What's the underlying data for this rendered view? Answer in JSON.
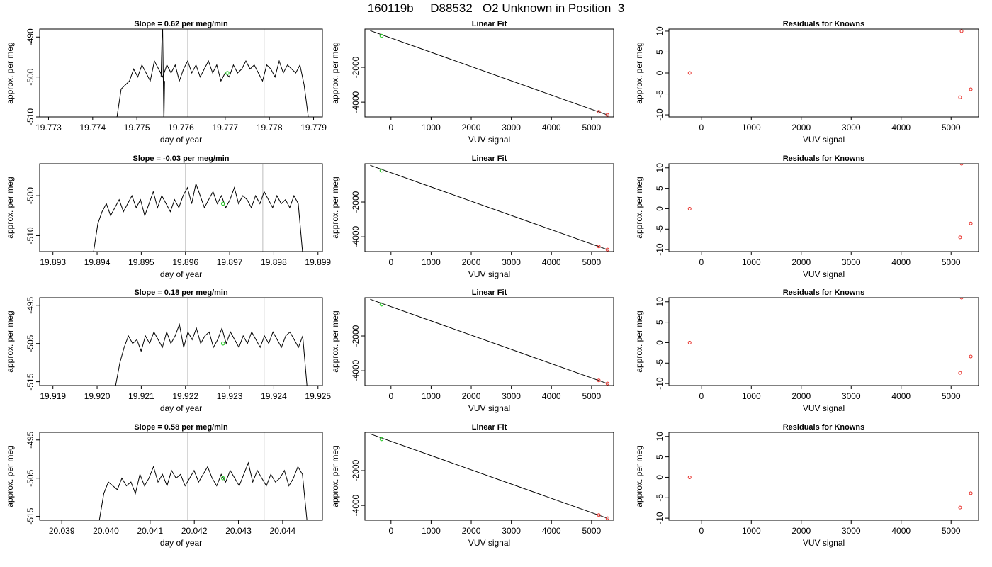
{
  "title": "160119b     D88532   O2 Unknown in Position  3",
  "chart_data": [
    {
      "type": "line",
      "title": "Slope =  0.62  per meg/min",
      "xlabel": "day of year",
      "ylabel": "approx. per meg",
      "xlim": [
        19.7728,
        19.7792
      ],
      "ylim": [
        -510,
        -488
      ],
      "xticks": [
        19.773,
        19.774,
        19.775,
        19.776,
        19.777,
        19.778,
        19.779
      ],
      "xtick_labels": [
        "19.773",
        "19.774",
        "19.775",
        "19.776",
        "19.777",
        "19.778",
        "19.779"
      ],
      "yticks": [
        -510,
        -500,
        -490
      ],
      "ytick_labels": [
        "-510",
        "-500",
        "-490"
      ],
      "vlines": [
        19.77615,
        19.77788
      ],
      "x_start": 19.77455,
      "x_end": 19.77888,
      "y": [
        -510,
        -503,
        -502,
        -501,
        -498,
        -500,
        -497,
        -499,
        -501,
        -496,
        -498,
        -500,
        -497,
        -499,
        -497,
        -501,
        -498,
        -496,
        -499,
        -497,
        -500,
        -498,
        -496,
        -499,
        -497,
        -501,
        -499,
        -500,
        -497,
        -499,
        -498,
        -496,
        -498,
        -497,
        -499,
        -501,
        -497,
        -498,
        -500,
        -496,
        -499,
        -497,
        -498,
        -499,
        -497,
        -502,
        -510
      ],
      "spike": {
        "x": 19.77558,
        "ylow": -512,
        "yhigh": -485
      },
      "marker": {
        "x": 19.77705,
        "y": -499
      },
      "grid": false
    },
    {
      "type": "scatter",
      "title": "Linear Fit",
      "xlabel": "VUV signal",
      "ylabel": "approx. per meg",
      "xlim": [
        -650,
        5550
      ],
      "ylim": [
        -4850,
        200
      ],
      "xticks": [
        0,
        1000,
        2000,
        3000,
        4000,
        5000
      ],
      "xtick_labels": [
        "0",
        "1000",
        "2000",
        "3000",
        "4000",
        "5000"
      ],
      "yticks": [
        -4000,
        -2000
      ],
      "ytick_labels": [
        "-4000",
        "-2000"
      ],
      "line": {
        "x": [
          -520,
          5400
        ],
        "y": [
          110,
          -4740
        ]
      },
      "known_points": [
        {
          "x": 5180,
          "y": -4555
        },
        {
          "x": 5395,
          "y": -4735
        }
      ],
      "unknown_point": {
        "x": -235,
        "y": -190
      },
      "grid": false
    },
    {
      "type": "scatter",
      "title": "Residuals for Knowns",
      "xlabel": "VUV signal",
      "ylabel": "approx. per meg",
      "xlim": [
        -650,
        5550
      ],
      "ylim": [
        -10.5,
        10.5
      ],
      "xticks": [
        0,
        1000,
        2000,
        3000,
        4000,
        5000
      ],
      "xtick_labels": [
        "0",
        "1000",
        "2000",
        "3000",
        "4000",
        "5000"
      ],
      "yticks": [
        -10,
        -5,
        0,
        5,
        10
      ],
      "ytick_labels": [
        "-10",
        "-5",
        "0",
        "5",
        "10"
      ],
      "points": [
        {
          "x": -235,
          "y": 0
        },
        {
          "x": 5210,
          "y": 10
        },
        {
          "x": 5180,
          "y": -5.8
        },
        {
          "x": 5395,
          "y": -3.9
        }
      ],
      "grid": false
    },
    {
      "type": "line",
      "title": "Slope =  -0.03  per meg/min",
      "xlabel": "day of year",
      "ylabel": "approx. per meg",
      "xlim": [
        19.8927,
        19.8991
      ],
      "ylim": [
        -514,
        -492
      ],
      "xticks": [
        19.893,
        19.894,
        19.895,
        19.896,
        19.897,
        19.898,
        19.899
      ],
      "xtick_labels": [
        "19.893",
        "19.894",
        "19.895",
        "19.896",
        "19.897",
        "19.898",
        "19.899"
      ],
      "yticks": [
        -510,
        -500
      ],
      "ytick_labels": [
        "-510",
        "-500"
      ],
      "vlines": [
        19.896,
        19.89775
      ],
      "x_start": 19.89392,
      "x_end": 19.89865,
      "y": [
        -514,
        -507,
        -504,
        -502,
        -505,
        -503,
        -501,
        -504,
        -502,
        -500,
        -503,
        -501,
        -505,
        -502,
        -499,
        -503,
        -500,
        -502,
        -504,
        -501,
        -503,
        -500,
        -498,
        -502,
        -497,
        -500,
        -503,
        -501,
        -499,
        -502,
        -500,
        -503,
        -501,
        -498,
        -502,
        -500,
        -501,
        -503,
        -500,
        -502,
        -499,
        -501,
        -503,
        -500,
        -502,
        -501,
        -503,
        -500,
        -502,
        -514
      ],
      "marker": {
        "x": 19.89685,
        "y": -502
      },
      "grid": false
    },
    {
      "type": "scatter",
      "title": "Linear Fit",
      "xlabel": "VUV signal",
      "ylabel": "approx. per meg",
      "xlim": [
        -650,
        5550
      ],
      "ylim": [
        -4850,
        200
      ],
      "xticks": [
        0,
        1000,
        2000,
        3000,
        4000,
        5000
      ],
      "xtick_labels": [
        "0",
        "1000",
        "2000",
        "3000",
        "4000",
        "5000"
      ],
      "yticks": [
        -4000,
        -2000
      ],
      "ytick_labels": [
        "-4000",
        "-2000"
      ],
      "line": {
        "x": [
          -520,
          5400
        ],
        "y": [
          110,
          -4740
        ]
      },
      "known_points": [
        {
          "x": 5180,
          "y": -4555
        },
        {
          "x": 5395,
          "y": -4735
        }
      ],
      "unknown_point": {
        "x": -235,
        "y": -190
      },
      "grid": false
    },
    {
      "type": "scatter",
      "title": "Residuals for Knowns",
      "xlabel": "VUV signal",
      "ylabel": "approx. per meg",
      "xlim": [
        -650,
        5550
      ],
      "ylim": [
        -10.5,
        11
      ],
      "xticks": [
        0,
        1000,
        2000,
        3000,
        4000,
        5000
      ],
      "xtick_labels": [
        "0",
        "1000",
        "2000",
        "3000",
        "4000",
        "5000"
      ],
      "yticks": [
        -10,
        -5,
        0,
        5,
        10
      ],
      "ytick_labels": [
        "-10",
        "-5",
        "0",
        "5",
        "10"
      ],
      "points": [
        {
          "x": -235,
          "y": 0
        },
        {
          "x": 5210,
          "y": 11
        },
        {
          "x": 5180,
          "y": -7
        },
        {
          "x": 5395,
          "y": -3.6
        }
      ],
      "grid": false
    },
    {
      "type": "line",
      "title": "Slope =  0.18  per meg/min",
      "xlabel": "day of year",
      "ylabel": "approx. per meg",
      "xlim": [
        19.9187,
        19.9251
      ],
      "ylim": [
        -516,
        -493
      ],
      "xticks": [
        19.919,
        19.92,
        19.921,
        19.922,
        19.923,
        19.924,
        19.925
      ],
      "xtick_labels": [
        "19.919",
        "19.920",
        "19.921",
        "19.922",
        "19.923",
        "19.924",
        "19.925"
      ],
      "yticks": [
        -515,
        -505,
        -495
      ],
      "ytick_labels": [
        "-515",
        "-505",
        "-495"
      ],
      "vlines": [
        19.92205,
        19.92378
      ],
      "x_start": 19.92042,
      "x_end": 19.92475,
      "y": [
        -516,
        -510,
        -506,
        -503,
        -505,
        -504,
        -507,
        -503,
        -505,
        -502,
        -504,
        -506,
        -502,
        -505,
        -503,
        -500,
        -506,
        -502,
        -504,
        -501,
        -505,
        -503,
        -502,
        -506,
        -504,
        -501,
        -505,
        -502,
        -504,
        -506,
        -503,
        -505,
        -502,
        -504,
        -506,
        -503,
        -505,
        -502,
        -504,
        -506,
        -503,
        -502,
        -504,
        -506,
        -503,
        -516
      ],
      "marker": {
        "x": 19.92285,
        "y": -505
      },
      "grid": false
    },
    {
      "type": "scatter",
      "title": "Linear Fit",
      "xlabel": "VUV signal",
      "ylabel": "approx. per meg",
      "xlim": [
        -650,
        5550
      ],
      "ylim": [
        -4850,
        200
      ],
      "xticks": [
        0,
        1000,
        2000,
        3000,
        4000,
        5000
      ],
      "xtick_labels": [
        "0",
        "1000",
        "2000",
        "3000",
        "4000",
        "5000"
      ],
      "yticks": [
        -4000,
        -2000
      ],
      "ytick_labels": [
        "-4000",
        "-2000"
      ],
      "line": {
        "x": [
          -520,
          5400
        ],
        "y": [
          110,
          -4740
        ]
      },
      "known_points": [
        {
          "x": 5180,
          "y": -4555
        },
        {
          "x": 5395,
          "y": -4735
        }
      ],
      "unknown_point": {
        "x": -235,
        "y": -190
      },
      "grid": false
    },
    {
      "type": "scatter",
      "title": "Residuals for Knowns",
      "xlabel": "VUV signal",
      "ylabel": "approx. per meg",
      "xlim": [
        -650,
        5550
      ],
      "ylim": [
        -10.5,
        11
      ],
      "xticks": [
        0,
        1000,
        2000,
        3000,
        4000,
        5000
      ],
      "xtick_labels": [
        "0",
        "1000",
        "2000",
        "3000",
        "4000",
        "5000"
      ],
      "yticks": [
        -10,
        -5,
        0,
        5,
        10
      ],
      "ytick_labels": [
        "-10",
        "-5",
        "0",
        "5",
        "10"
      ],
      "points": [
        {
          "x": -235,
          "y": 0
        },
        {
          "x": 5210,
          "y": 11
        },
        {
          "x": 5180,
          "y": -7.4
        },
        {
          "x": 5395,
          "y": -3.4
        }
      ],
      "grid": false
    },
    {
      "type": "line",
      "title": "Slope =  0.58  per meg/min",
      "xlabel": "day of year",
      "ylabel": "approx. per meg",
      "xlim": [
        20.0385,
        20.0449
      ],
      "ylim": [
        -516,
        -493
      ],
      "xticks": [
        20.039,
        20.04,
        20.041,
        20.042,
        20.043,
        20.044
      ],
      "xtick_labels": [
        "20.039",
        "20.040",
        "20.041",
        "20.042",
        "20.043",
        "20.044"
      ],
      "yticks": [
        -515,
        -505,
        -495
      ],
      "ytick_labels": [
        "-515",
        "-505",
        "-495"
      ],
      "vlines": [
        20.04185,
        20.04358
      ],
      "x_start": 20.03985,
      "x_end": 20.04455,
      "y": [
        -516,
        -509,
        -506,
        -507,
        -508,
        -505,
        -507,
        -506,
        -509,
        -504,
        -507,
        -505,
        -502,
        -506,
        -504,
        -507,
        -503,
        -505,
        -504,
        -507,
        -505,
        -503,
        -506,
        -504,
        -502,
        -505,
        -507,
        -504,
        -506,
        -503,
        -505,
        -507,
        -504,
        -501,
        -506,
        -503,
        -505,
        -507,
        -504,
        -506,
        -505,
        -503,
        -507,
        -505,
        -502,
        -504,
        -516
      ],
      "marker": {
        "x": 20.04265,
        "y": -505
      },
      "grid": false
    },
    {
      "type": "scatter",
      "title": "Linear Fit",
      "xlabel": "VUV signal",
      "ylabel": "approx. per meg",
      "xlim": [
        -650,
        5550
      ],
      "ylim": [
        -4850,
        200
      ],
      "xticks": [
        0,
        1000,
        2000,
        3000,
        4000,
        5000
      ],
      "xtick_labels": [
        "0",
        "1000",
        "2000",
        "3000",
        "4000",
        "5000"
      ],
      "yticks": [
        -4000,
        -2000
      ],
      "ytick_labels": [
        "-4000",
        "-2000"
      ],
      "line": {
        "x": [
          -520,
          5400
        ],
        "y": [
          110,
          -4740
        ]
      },
      "known_points": [
        {
          "x": 5180,
          "y": -4555
        },
        {
          "x": 5395,
          "y": -4735
        }
      ],
      "unknown_point": {
        "x": -235,
        "y": -190
      },
      "grid": false
    },
    {
      "type": "scatter",
      "title": "Residuals for Knowns",
      "xlabel": "VUV signal",
      "ylabel": "approx. per meg",
      "xlim": [
        -650,
        5550
      ],
      "ylim": [
        -10.5,
        11
      ],
      "xticks": [
        0,
        1000,
        2000,
        3000,
        4000,
        5000
      ],
      "xtick_labels": [
        "0",
        "1000",
        "2000",
        "3000",
        "4000",
        "5000"
      ],
      "yticks": [
        -10,
        -5,
        0,
        5,
        10
      ],
      "ytick_labels": [
        "-10",
        "-5",
        "0",
        "5",
        "10"
      ],
      "points": [
        {
          "x": -235,
          "y": 0
        },
        {
          "x": 5180,
          "y": -7.4
        },
        {
          "x": 5395,
          "y": -3.9
        }
      ],
      "grid": false
    }
  ],
  "colors": {
    "axis": "#000000",
    "line": "#000000",
    "vline": "#c8c8c8",
    "known": "#e8302a",
    "unknown": "#2ecc2e"
  }
}
